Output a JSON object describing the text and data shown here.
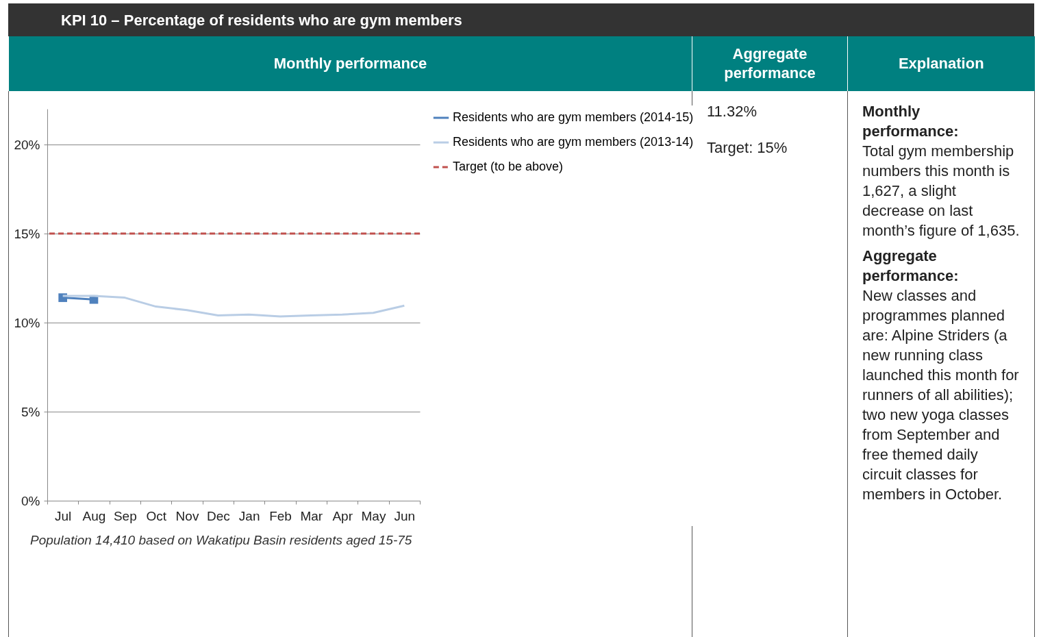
{
  "chart_data": {
    "type": "line",
    "title": "KPI 10 – Percentage of residents who are gym members",
    "categories": [
      "Jul",
      "Aug",
      "Sep",
      "Oct",
      "Nov",
      "Dec",
      "Jan",
      "Feb",
      "Mar",
      "Apr",
      "May",
      "Jun"
    ],
    "series": [
      {
        "name": "Residents who are gym members (2014-15)",
        "color": "#4f81bd",
        "marker": "square",
        "values": [
          11.4,
          11.3,
          null,
          null,
          null,
          null,
          null,
          null,
          null,
          null,
          null,
          null
        ]
      },
      {
        "name": "Residents who are gym members (2013-14)",
        "color": "#b9cde5",
        "marker": "none",
        "values": [
          11.5,
          11.5,
          11.4,
          10.9,
          10.7,
          10.4,
          10.45,
          10.35,
          10.4,
          10.45,
          10.55,
          10.95
        ]
      }
    ],
    "ref_lines": [
      {
        "axis": "y",
        "value": 15,
        "label": "Target (to be above)",
        "color": "#c0504d",
        "line_style": "dashed"
      }
    ],
    "ylim": [
      0,
      22
    ],
    "yticks": [
      {
        "value": 0,
        "label": "0%"
      },
      {
        "value": 5,
        "label": "5%"
      },
      {
        "value": 10,
        "label": "10%"
      },
      {
        "value": 15,
        "label": "15%"
      },
      {
        "value": 20,
        "label": "20%"
      }
    ],
    "grid": "y",
    "legend": "right",
    "annotations": [
      "Monthly performance",
      "Aggregate performance",
      "Explanation",
      "11.32%",
      "Target: 15%",
      "Monthly performance:",
      "Total gym membership numbers this month is 1,627, a slight decrease on last month’s figure of 1,635.",
      "Aggregate performance:",
      "New classes and programmes planned are: Alpine Striders (a new running class launched this month for runners of all abilities);  two new yoga classes from September  and free themed daily circuit classes for members in October.",
      "Population 14,410 based on Wakatipu Basin residents aged 15-75"
    ]
  }
}
